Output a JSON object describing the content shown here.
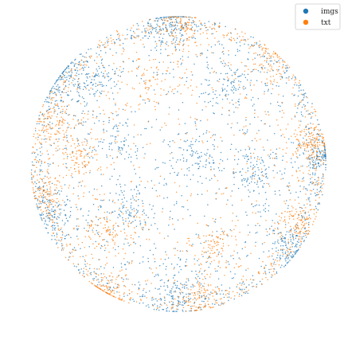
{
  "chart_data": {
    "type": "scatter",
    "title": "",
    "xlabel": "",
    "ylabel": "",
    "axes_visible": false,
    "grid": false,
    "shape": "unit-disk",
    "xlim": [
      -1,
      1
    ],
    "ylim": [
      -1,
      1
    ],
    "legend": {
      "position": "top-right"
    },
    "series": [
      {
        "name": "imgs",
        "color": "#1f77b4",
        "clusters": [
          {
            "cx": -0.05,
            "cy": 0.92,
            "spread": 0.08,
            "n": 140
          },
          {
            "cx": -0.78,
            "cy": 0.55,
            "spread": 0.1,
            "n": 130
          },
          {
            "cx": -0.55,
            "cy": 0.58,
            "spread": 0.08,
            "n": 90
          },
          {
            "cx": 0.1,
            "cy": 0.05,
            "spread": 0.09,
            "n": 110
          },
          {
            "cx": -0.35,
            "cy": -0.3,
            "spread": 0.08,
            "n": 90
          },
          {
            "cx": 0.5,
            "cy": -0.05,
            "spread": 0.09,
            "n": 110
          },
          {
            "cx": 0.95,
            "cy": 0.05,
            "spread": 0.05,
            "n": 110
          },
          {
            "cx": -0.85,
            "cy": -0.35,
            "spread": 0.08,
            "n": 100
          },
          {
            "cx": 0.0,
            "cy": -0.88,
            "spread": 0.09,
            "n": 130
          },
          {
            "cx": 0.75,
            "cy": -0.55,
            "spread": 0.08,
            "n": 100
          },
          {
            "cx": 0.35,
            "cy": 0.55,
            "spread": 0.09,
            "n": 90
          },
          {
            "cx": -0.4,
            "cy": 0.15,
            "spread": 0.08,
            "n": 70
          }
        ],
        "background_points": 900
      },
      {
        "name": "txt",
        "color": "#ff7f0e",
        "clusters": [
          {
            "cx": 0.02,
            "cy": 0.9,
            "spread": 0.07,
            "n": 90
          },
          {
            "cx": -0.82,
            "cy": 0.28,
            "spread": 0.08,
            "n": 100
          },
          {
            "cx": -0.68,
            "cy": 0.05,
            "spread": 0.07,
            "n": 90
          },
          {
            "cx": 0.88,
            "cy": 0.15,
            "spread": 0.06,
            "n": 110
          },
          {
            "cx": 0.8,
            "cy": -0.4,
            "spread": 0.07,
            "n": 100
          },
          {
            "cx": -0.45,
            "cy": -0.45,
            "spread": 0.08,
            "n": 90
          },
          {
            "cx": 0.25,
            "cy": -0.55,
            "spread": 0.08,
            "n": 100
          },
          {
            "cx": -0.5,
            "cy": -0.85,
            "spread": 0.08,
            "n": 110
          },
          {
            "cx": 0.15,
            "cy": -0.9,
            "spread": 0.07,
            "n": 90
          },
          {
            "cx": -0.2,
            "cy": 0.55,
            "spread": 0.08,
            "n": 60
          },
          {
            "cx": -0.9,
            "cy": -0.2,
            "spread": 0.06,
            "n": 90
          },
          {
            "cx": 0.6,
            "cy": 0.7,
            "spread": 0.07,
            "n": 60
          }
        ],
        "background_points": 800
      }
    ]
  }
}
